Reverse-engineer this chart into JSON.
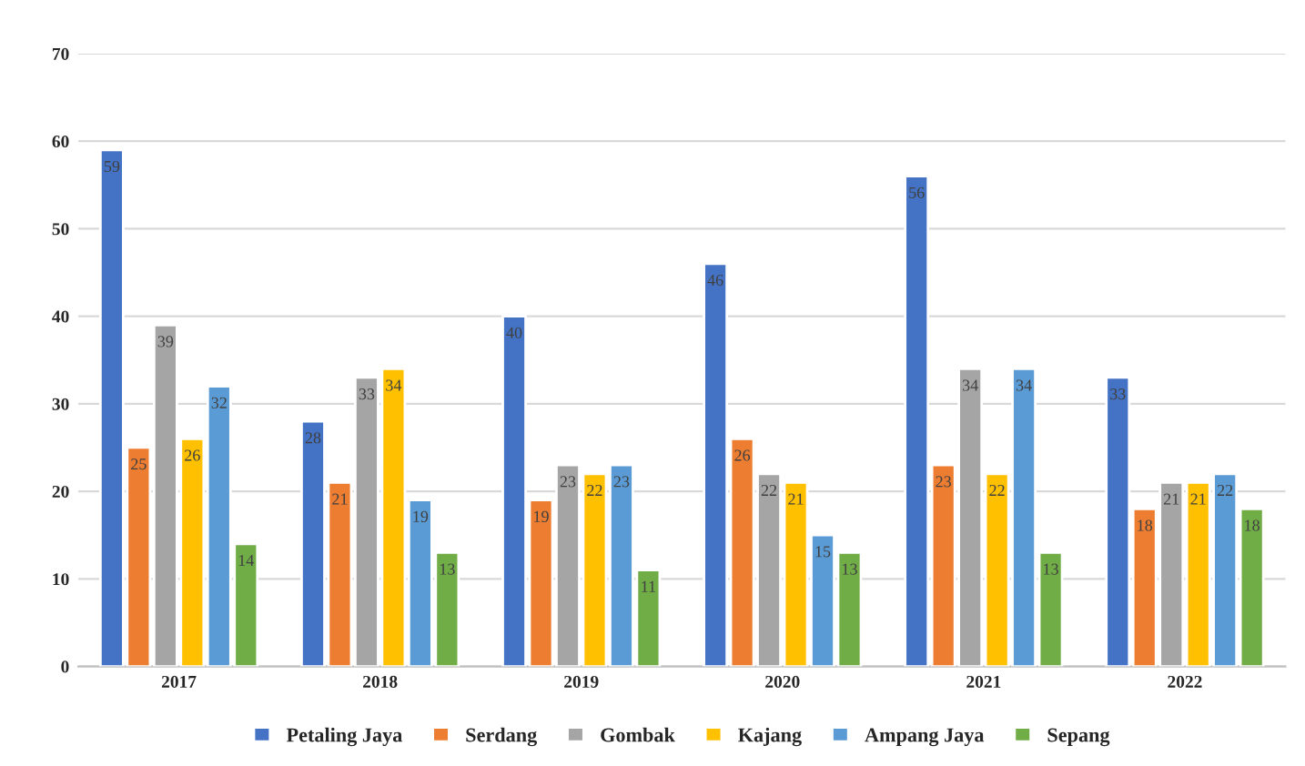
{
  "chart_data": {
    "type": "bar",
    "categories": [
      "2017",
      "2018",
      "2019",
      "2020",
      "2021",
      "2022"
    ],
    "series": [
      {
        "name": "Petaling Jaya",
        "color": "#4472c4",
        "values": [
          59,
          28,
          40,
          46,
          56,
          33
        ]
      },
      {
        "name": "Serdang",
        "color": "#ed7d31",
        "values": [
          25,
          21,
          19,
          26,
          23,
          18
        ]
      },
      {
        "name": "Gombak",
        "color": "#a5a5a5",
        "values": [
          39,
          33,
          23,
          22,
          34,
          21
        ]
      },
      {
        "name": "Kajang",
        "color": "#ffc000",
        "values": [
          26,
          34,
          22,
          21,
          22,
          21
        ]
      },
      {
        "name": "Ampang Jaya",
        "color": "#5b9bd5",
        "values": [
          32,
          19,
          23,
          15,
          34,
          22
        ]
      },
      {
        "name": "Sepang",
        "color": "#70ad47",
        "values": [
          14,
          13,
          11,
          13,
          13,
          18
        ]
      }
    ],
    "ylim": [
      0,
      70
    ],
    "yticks": [
      0,
      10,
      20,
      30,
      40,
      50,
      60,
      70
    ],
    "grid": "y",
    "legend": "bottom",
    "data_labels": true
  }
}
